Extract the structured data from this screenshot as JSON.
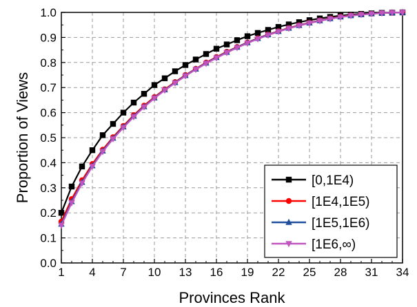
{
  "chart_data": {
    "type": "line",
    "xlabel": "Provinces Rank",
    "ylabel": "Proportion of Views",
    "xlim": [
      1,
      34
    ],
    "ylim": [
      0.0,
      1.0
    ],
    "xticks": [
      1,
      4,
      7,
      10,
      13,
      16,
      19,
      22,
      25,
      28,
      31,
      34
    ],
    "yticks": [
      0.0,
      0.1,
      0.2,
      0.3,
      0.4,
      0.5,
      0.6,
      0.7,
      0.8,
      0.9,
      1.0
    ],
    "xtick_labels": [
      "1",
      "4",
      "7",
      "10",
      "13",
      "16",
      "19",
      "22",
      "25",
      "28",
      "31",
      "34"
    ],
    "ytick_labels": [
      "0.0",
      "0.1",
      "0.2",
      "0.3",
      "0.4",
      "0.5",
      "0.6",
      "0.7",
      "0.8",
      "0.9",
      "1.0"
    ],
    "grid": true,
    "legend_position": "bottom-right",
    "x": [
      1,
      2,
      3,
      4,
      5,
      6,
      7,
      8,
      9,
      10,
      11,
      12,
      13,
      14,
      15,
      16,
      17,
      18,
      19,
      20,
      21,
      22,
      23,
      24,
      25,
      26,
      27,
      28,
      29,
      30,
      31,
      32,
      33,
      34
    ],
    "series": [
      {
        "name": "[0,1E4)",
        "color": "#000000",
        "marker": "square",
        "values": [
          0.2,
          0.305,
          0.385,
          0.45,
          0.51,
          0.555,
          0.6,
          0.64,
          0.675,
          0.71,
          0.737,
          0.765,
          0.79,
          0.812,
          0.834,
          0.855,
          0.872,
          0.889,
          0.905,
          0.918,
          0.93,
          0.942,
          0.952,
          0.961,
          0.969,
          0.976,
          0.982,
          0.987,
          0.991,
          0.994,
          0.996,
          0.998,
          0.999,
          1.0
        ]
      },
      {
        "name": "[1E4,1E5)",
        "color": "#ff0000",
        "marker": "circle",
        "values": [
          0.165,
          0.255,
          0.33,
          0.395,
          0.452,
          0.502,
          0.547,
          0.59,
          0.628,
          0.662,
          0.693,
          0.722,
          0.75,
          0.775,
          0.8,
          0.822,
          0.843,
          0.862,
          0.88,
          0.897,
          0.912,
          0.925,
          0.938,
          0.949,
          0.959,
          0.968,
          0.976,
          0.983,
          0.988,
          0.992,
          0.995,
          0.997,
          0.999,
          1.0
        ]
      },
      {
        "name": "[1E5,1E6)",
        "color": "#1f4e9c",
        "marker": "triangle-up",
        "values": [
          0.155,
          0.245,
          0.322,
          0.388,
          0.447,
          0.498,
          0.543,
          0.586,
          0.624,
          0.659,
          0.691,
          0.72,
          0.748,
          0.774,
          0.798,
          0.82,
          0.841,
          0.861,
          0.879,
          0.896,
          0.911,
          0.924,
          0.937,
          0.948,
          0.958,
          0.967,
          0.975,
          0.982,
          0.987,
          0.991,
          0.995,
          0.997,
          0.999,
          1.0
        ]
      },
      {
        "name": "[1E6,∞)",
        "color": "#c055c0",
        "marker": "triangle-down",
        "values": [
          0.15,
          0.24,
          0.318,
          0.385,
          0.444,
          0.495,
          0.54,
          0.583,
          0.622,
          0.657,
          0.689,
          0.718,
          0.746,
          0.772,
          0.796,
          0.818,
          0.839,
          0.859,
          0.877,
          0.894,
          0.909,
          0.923,
          0.936,
          0.947,
          0.957,
          0.966,
          0.974,
          0.981,
          0.987,
          0.991,
          0.994,
          0.997,
          0.999,
          1.0
        ]
      }
    ]
  }
}
